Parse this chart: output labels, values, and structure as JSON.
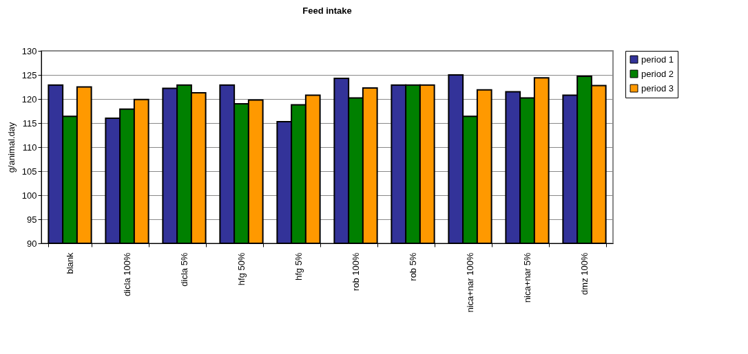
{
  "chart_data": {
    "type": "bar",
    "title": "Feed intake",
    "ylabel": "g/animal.day",
    "categories": [
      "blank",
      "dicla 100%",
      "dicla 5%",
      "hfg 50%",
      "hfg 5%",
      "rob 100%",
      "rob 5%",
      "nica+nar 100%",
      "nica+nar 5%",
      "dmz 100%"
    ],
    "series": [
      {
        "name": "period 1",
        "color": "#333399",
        "values": [
          122.9,
          116.0,
          122.2,
          122.9,
          115.3,
          124.3,
          122.9,
          125.0,
          121.5,
          120.8
        ]
      },
      {
        "name": "period 2",
        "color": "#008000",
        "values": [
          116.4,
          117.9,
          122.9,
          119.0,
          118.8,
          120.2,
          122.9,
          116.4,
          120.2,
          124.7
        ]
      },
      {
        "name": "period 3",
        "color": "#ff9900",
        "values": [
          122.5,
          119.9,
          121.3,
          119.8,
          120.8,
          122.3,
          122.9,
          121.9,
          124.4,
          122.8
        ]
      }
    ],
    "ylim": [
      90,
      130
    ],
    "yticks": [
      90,
      95,
      100,
      105,
      110,
      115,
      120,
      125,
      130
    ],
    "grid": "y",
    "legend": "right"
  }
}
